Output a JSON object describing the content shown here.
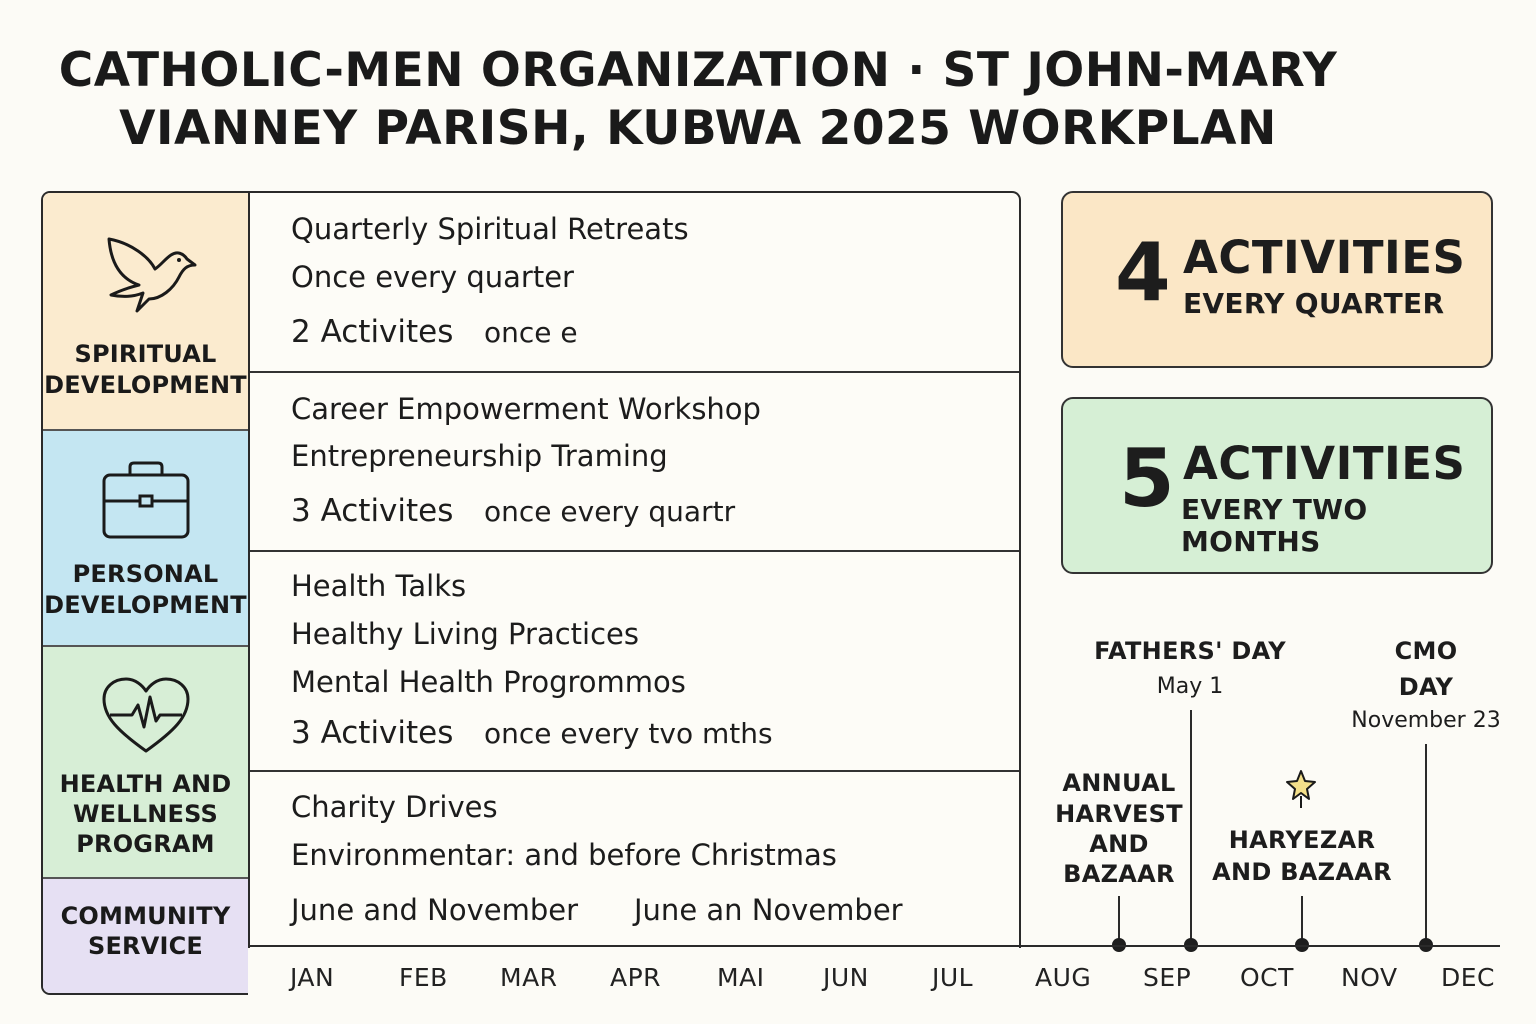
{
  "title": {
    "line1": "CATHOLIC-MEN ORGANIZATION · ST JOHN-MARY",
    "line2": "VIANNEY PARISH, KUBWA 2025 WORKPLAN"
  },
  "categories": [
    {
      "label_l1": "SPIRITUAL",
      "label_l2": "DEVELOPMENT",
      "label_l3": "",
      "icon": "dove-icon",
      "color": "#fbebcf"
    },
    {
      "label_l1": "PERSONAL",
      "label_l2": "DEVELOPMENT",
      "label_l3": "",
      "icon": "briefcase-icon",
      "color": "#c4e6f2"
    },
    {
      "label_l1": "HEALTH AND",
      "label_l2": "WELLNESS",
      "label_l3": "PROGRAM",
      "icon": "heart-pulse-icon",
      "color": "#d7eed6"
    },
    {
      "label_l1": "COMMUNITY",
      "label_l2": "SERVICE",
      "label_l3": "",
      "icon": "",
      "color": "#e6e0f3"
    }
  ],
  "rows": [
    {
      "lines": [
        "Quarterly Spiritual Retreats",
        "Once every quarter"
      ],
      "count": "2 Activites",
      "freq": "once e"
    },
    {
      "lines": [
        "Career Empowerment Workshop",
        "Entrepreneurship Traming"
      ],
      "count": "3 Activites",
      "freq": "once every quartr"
    },
    {
      "lines": [
        "Health Talks",
        "Healthy Living Practices",
        "Mental Health Progrommos"
      ],
      "count": "3 Activites",
      "freq": "once every tvo mths"
    },
    {
      "lines": [
        "Charity Drives",
        "Environmentar: and before Christmas"
      ],
      "count": "June and November",
      "freq": "June an November"
    }
  ],
  "stats": [
    {
      "number": "4",
      "big": "ACTIVITIES",
      "small": "EVERY QUARTER",
      "color": "#fbe7c6"
    },
    {
      "number": "5",
      "big": "ACTIVITIES",
      "small": "EVERY TWO MONTHS",
      "color": "#d6efd5"
    }
  ],
  "months": [
    "JAN",
    "FEB",
    "MAR",
    "APR",
    "MAI",
    "JUN",
    "JUL",
    "AUG",
    "SEP",
    "OCT",
    "NOV",
    "DEC"
  ],
  "events": {
    "fathers_day": {
      "title": "FATHERS' DAY",
      "date": "May 1"
    },
    "cmo_day": {
      "title_l1": "CMO",
      "title_l2": "DAY",
      "date": "November 23"
    },
    "harvest": {
      "l1": "ANNUAL",
      "l2": "HARVEST",
      "l3": "AND",
      "l4": "BAZAAR"
    },
    "haryezar": {
      "l1": "HARYEZAR",
      "l2": "AND BAZAAR"
    }
  }
}
